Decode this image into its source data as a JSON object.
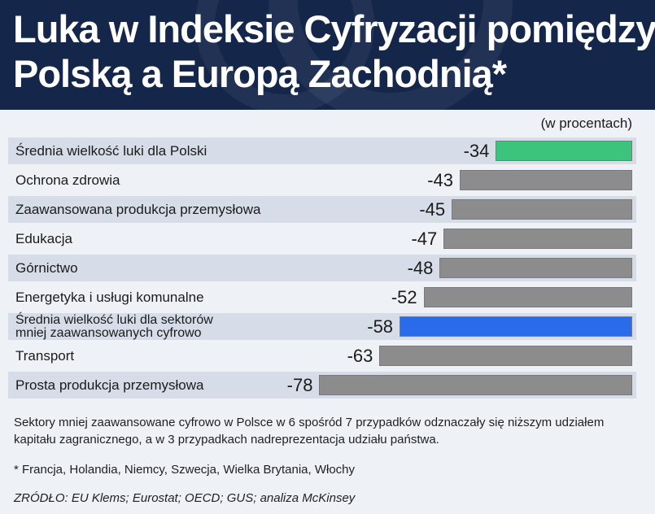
{
  "header": {
    "title_line1": "Luka w Indeksie Cyfryzacji pomiędzy",
    "title_line2": "Polską a Europą Zachodnią*"
  },
  "colors": {
    "header_bg": "#14264a",
    "green": "#3cc47c",
    "blue": "#2a6bea",
    "gray": "#8c8c8c"
  },
  "chart_data": {
    "type": "bar",
    "orientation": "horizontal",
    "title": "Luka w Indeksie Cyfryzacji pomiędzy Polską a Europą Zachodnią*",
    "unit_label": "(w procentach)",
    "categories": [
      "Średnia wielkość luki dla Polski",
      "Ochrona zdrowia",
      "Zaawansowana produkcja przemysłowa",
      "Edukacja",
      "Górnictwo",
      "Energetyka i usługi komunalne",
      "Średnia wielkość luki dla sektorów\nmniej zaawansowanych cyfrowo",
      "Transport",
      "Prosta produkcja przemysłowa"
    ],
    "values": [
      -34,
      -43,
      -45,
      -47,
      -48,
      -52,
      -58,
      -63,
      -78
    ],
    "value_labels": [
      "-34",
      "-43",
      "-45",
      "-47",
      "-48",
      "-52",
      "-58",
      "-63",
      "-78"
    ],
    "bar_colors": [
      "#3cc47c",
      "#8c8c8c",
      "#8c8c8c",
      "#8c8c8c",
      "#8c8c8c",
      "#8c8c8c",
      "#2a6bea",
      "#8c8c8c",
      "#8c8c8c"
    ],
    "xlim": [
      -100,
      0
    ]
  },
  "notes": {
    "main": "Sektory mniej zaawansowane cyfrowo w Polsce w 6 spośród 7 przypadków odznaczały się niższym udziałem kapitału zagranicznego, a w 3 przypadkach nadreprezentacja udziału państwa.",
    "footnote": "* Francja, Holandia, Niemcy, Szwecja, Wielka Brytania, Włochy",
    "source": "ZRÓDŁO: EU Klems; Eurostat; OECD; GUS; analiza McKinsey"
  }
}
